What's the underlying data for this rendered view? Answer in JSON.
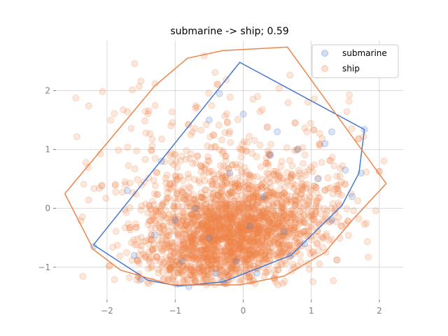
{
  "chart_data": {
    "type": "scatter",
    "title": "submarine -> ship; 0.59",
    "xlabel": "",
    "ylabel": "",
    "xlim": [
      -2.75,
      2.35
    ],
    "ylim": [
      -1.55,
      2.85
    ],
    "xticks": [
      -2,
      -1,
      0,
      1,
      2
    ],
    "xtick_labels": [
      "−2",
      "−1",
      "0",
      "1",
      "2"
    ],
    "yticks": [
      -1,
      0,
      1,
      2
    ],
    "ytick_labels": [
      "−1",
      "0",
      "1",
      "2"
    ],
    "grid": true,
    "legend_position": "upper right",
    "series": [
      {
        "name": "submarine",
        "color": "#4878cf",
        "marker_alpha": 0.2,
        "points": [
          [
            -0.8,
            -1.33
          ],
          [
            -0.3,
            -1.25
          ],
          [
            0.2,
            -1.1
          ],
          [
            0.7,
            -0.8
          ],
          [
            1.3,
            -0.2
          ],
          [
            1.6,
            0.2
          ],
          [
            1.73,
            0.6
          ],
          [
            1.78,
            1.34
          ],
          [
            1.3,
            1.3
          ],
          [
            0.8,
            1.0
          ],
          [
            0.5,
            1.3
          ],
          [
            -0.35,
            1.95
          ],
          [
            -0.5,
            1.5
          ],
          [
            -1.2,
            0.8
          ],
          [
            -1.7,
            0.3
          ],
          [
            -2.2,
            -0.65
          ],
          [
            -1.5,
            -1.2
          ],
          [
            -1.3,
            -0.45
          ],
          [
            -0.9,
            -0.9
          ],
          [
            -0.5,
            -0.5
          ],
          [
            0.1,
            -0.3
          ],
          [
            0.3,
            0.2
          ],
          [
            -0.2,
            0.6
          ],
          [
            0.6,
            -0.4
          ],
          [
            1.1,
            0.5
          ],
          [
            -0.7,
            0.0
          ],
          [
            0.9,
            -0.6
          ],
          [
            -1.0,
            -0.2
          ],
          [
            0.4,
            0.9
          ],
          [
            -0.1,
            -0.9
          ],
          [
            1.2,
            1.1
          ],
          [
            -1.6,
            -0.8
          ],
          [
            0.0,
            1.6
          ],
          [
            1.5,
            0.65
          ],
          [
            -0.4,
            -1.1
          ]
        ]
      },
      {
        "name": "ship",
        "color": "#ee854a",
        "marker_alpha": 0.2
      }
    ],
    "hulls": [
      {
        "series": "submarine",
        "color": "#4878cf",
        "vertices": [
          [
            -2.2,
            -0.62
          ],
          [
            -1.4,
            -1.22
          ],
          [
            -0.95,
            -1.32
          ],
          [
            -0.3,
            -1.25
          ],
          [
            0.7,
            -0.8
          ],
          [
            1.45,
            0.05
          ],
          [
            1.7,
            0.6
          ],
          [
            1.78,
            1.34
          ],
          [
            -0.05,
            2.48
          ],
          [
            -2.2,
            -0.62
          ]
        ]
      },
      {
        "series": "ship",
        "color": "#ee854a",
        "vertices": [
          [
            -2.62,
            0.25
          ],
          [
            -2.2,
            -0.7
          ],
          [
            -1.8,
            -1.05
          ],
          [
            -1.05,
            -1.3
          ],
          [
            -0.05,
            -1.3
          ],
          [
            0.6,
            -1.15
          ],
          [
            1.2,
            -0.75
          ],
          [
            1.6,
            -0.2
          ],
          [
            2.1,
            0.42
          ],
          [
            0.65,
            2.74
          ],
          [
            -0.3,
            2.68
          ],
          [
            -0.82,
            2.55
          ],
          [
            -1.3,
            2.08
          ],
          [
            -2.62,
            0.25
          ]
        ]
      }
    ]
  }
}
